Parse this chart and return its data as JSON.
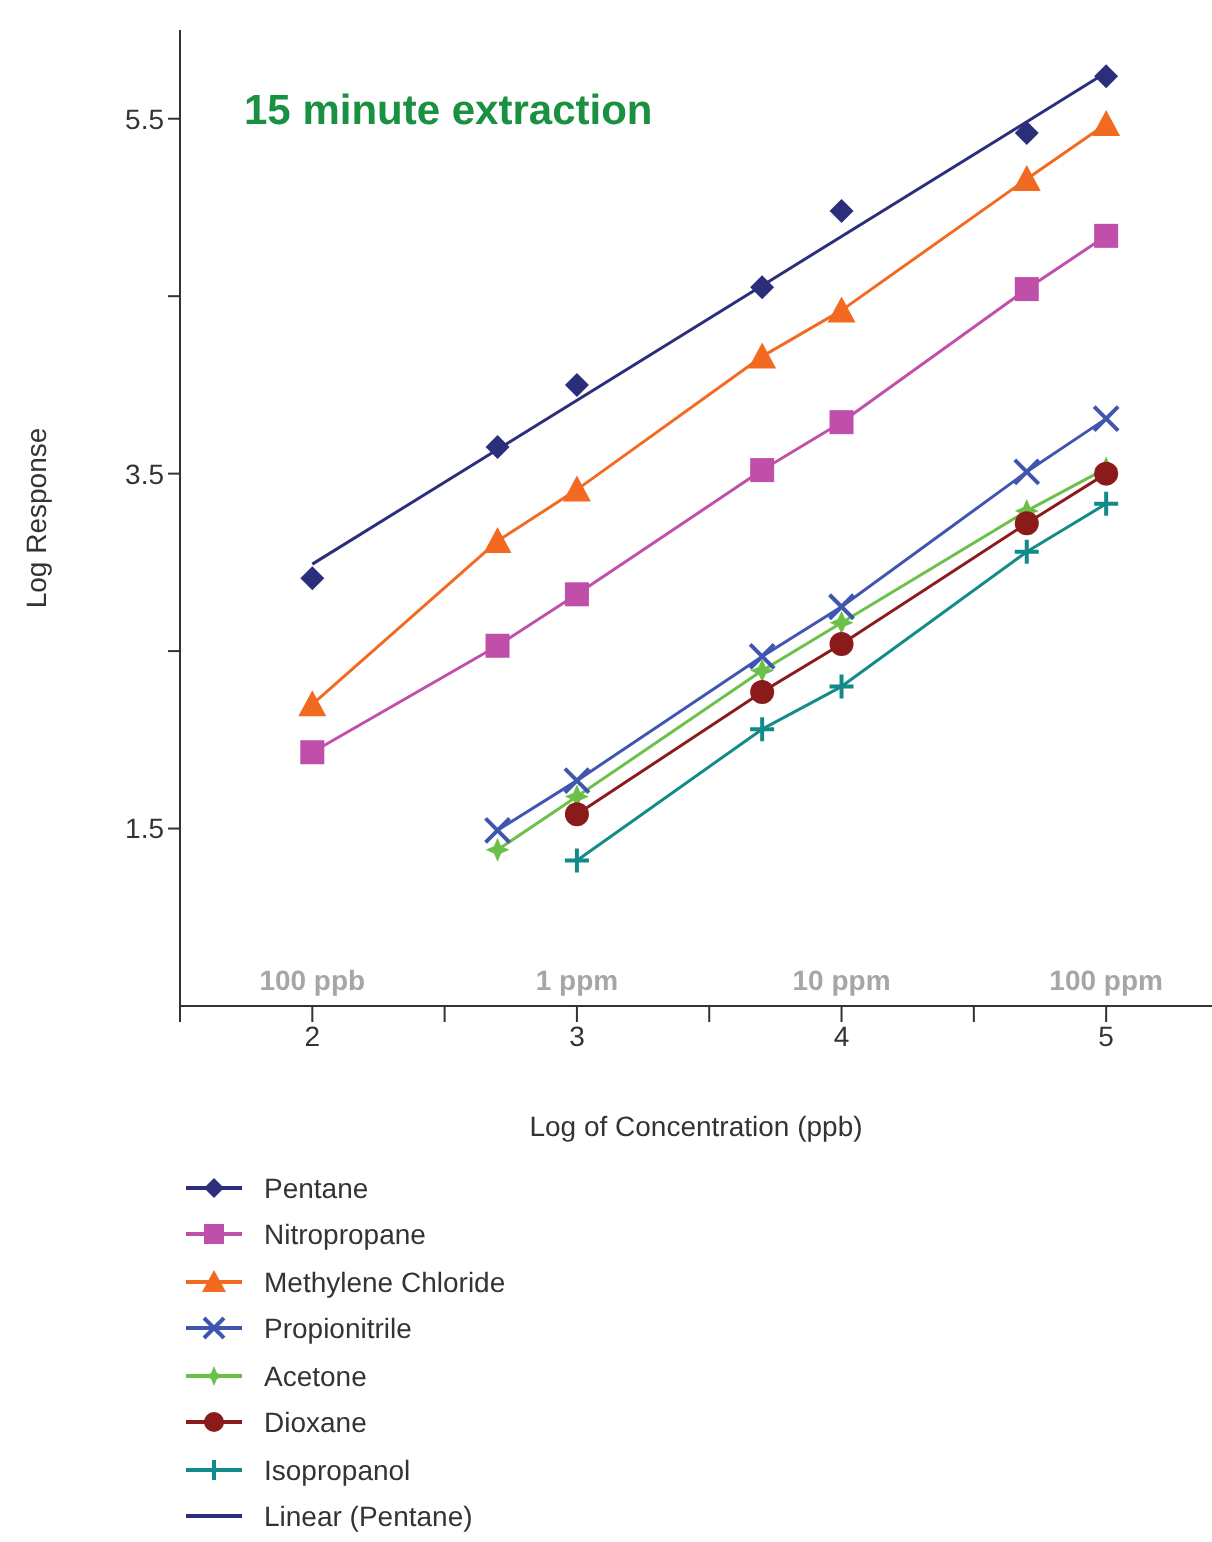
{
  "chart_data": {
    "type": "line",
    "title": "15 minute extraction",
    "xlabel": "Log of Concentration (ppb)",
    "ylabel": "Log Response",
    "xlim": [
      1.5,
      5.4
    ],
    "xticks": [
      {
        "value": 1.5,
        "label": null
      },
      2,
      {
        "value": 2.5,
        "label": null
      },
      3,
      {
        "value": 3.5,
        "label": null
      },
      4,
      {
        "value": 4.5,
        "label": null
      },
      5
    ],
    "ylim": [
      0.5,
      6
    ],
    "yticks": [
      1.5,
      {
        "value": 2.5,
        "label": null
      },
      3.5,
      {
        "value": 4.5,
        "label": null
      },
      5.5
    ],
    "grid": false,
    "legend": "bottom",
    "annotations": [
      "100 ppb",
      "1 ppm",
      "10 ppm",
      "100 ppm"
    ],
    "series": [
      {
        "name": "Pentane",
        "type": "scatter",
        "marker": "diamond",
        "color": "#2b2e7a",
        "x": [
          2,
          2.7,
          3,
          3.7,
          4,
          4.7,
          5
        ],
        "values": [
          2.91,
          3.65,
          4.0,
          4.55,
          4.98,
          5.42,
          5.74
        ]
      },
      {
        "name": "Nitropropane",
        "marker": "square",
        "color": "#bf4fa8",
        "x": [
          2,
          2.7,
          3,
          3.7,
          4,
          4.7,
          5
        ],
        "values": [
          1.93,
          2.53,
          2.82,
          3.52,
          3.79,
          4.54,
          4.84
        ]
      },
      {
        "name": "Methylene Chloride",
        "marker": "triangle",
        "color": "#f26a21",
        "x": [
          2,
          2.7,
          3,
          3.7,
          4,
          4.7,
          5
        ],
        "values": [
          2.2,
          3.12,
          3.41,
          4.16,
          4.42,
          5.16,
          5.47
        ]
      },
      {
        "name": "Propionitrile",
        "marker": "cross",
        "color": "#3f55b0",
        "x": [
          2.7,
          3,
          3.7,
          4,
          4.7,
          5
        ],
        "values": [
          1.49,
          1.77,
          2.47,
          2.75,
          3.51,
          3.81
        ]
      },
      {
        "name": "Acetone",
        "marker": "star",
        "color": "#6cc04a",
        "x": [
          2.7,
          3,
          3.7,
          4,
          4.7,
          5
        ],
        "values": [
          1.38,
          1.68,
          2.39,
          2.66,
          3.29,
          3.53
        ]
      },
      {
        "name": "Dioxane",
        "marker": "circle",
        "color": "#8b1a1a",
        "x": [
          3,
          3.7,
          4,
          4.7,
          5
        ],
        "values": [
          1.58,
          2.27,
          2.54,
          3.22,
          3.5
        ]
      },
      {
        "name": "Isopropanol",
        "marker": "plus",
        "color": "#128a8a",
        "x": [
          3,
          3.7,
          4,
          4.7,
          5
        ],
        "values": [
          1.32,
          2.06,
          2.3,
          3.06,
          3.33
        ]
      },
      {
        "name": "Linear (Pentane)",
        "marker": "none",
        "color": "#2b2e7a",
        "x": [
          2,
          5
        ],
        "values": [
          2.99,
          5.76
        ]
      }
    ]
  }
}
